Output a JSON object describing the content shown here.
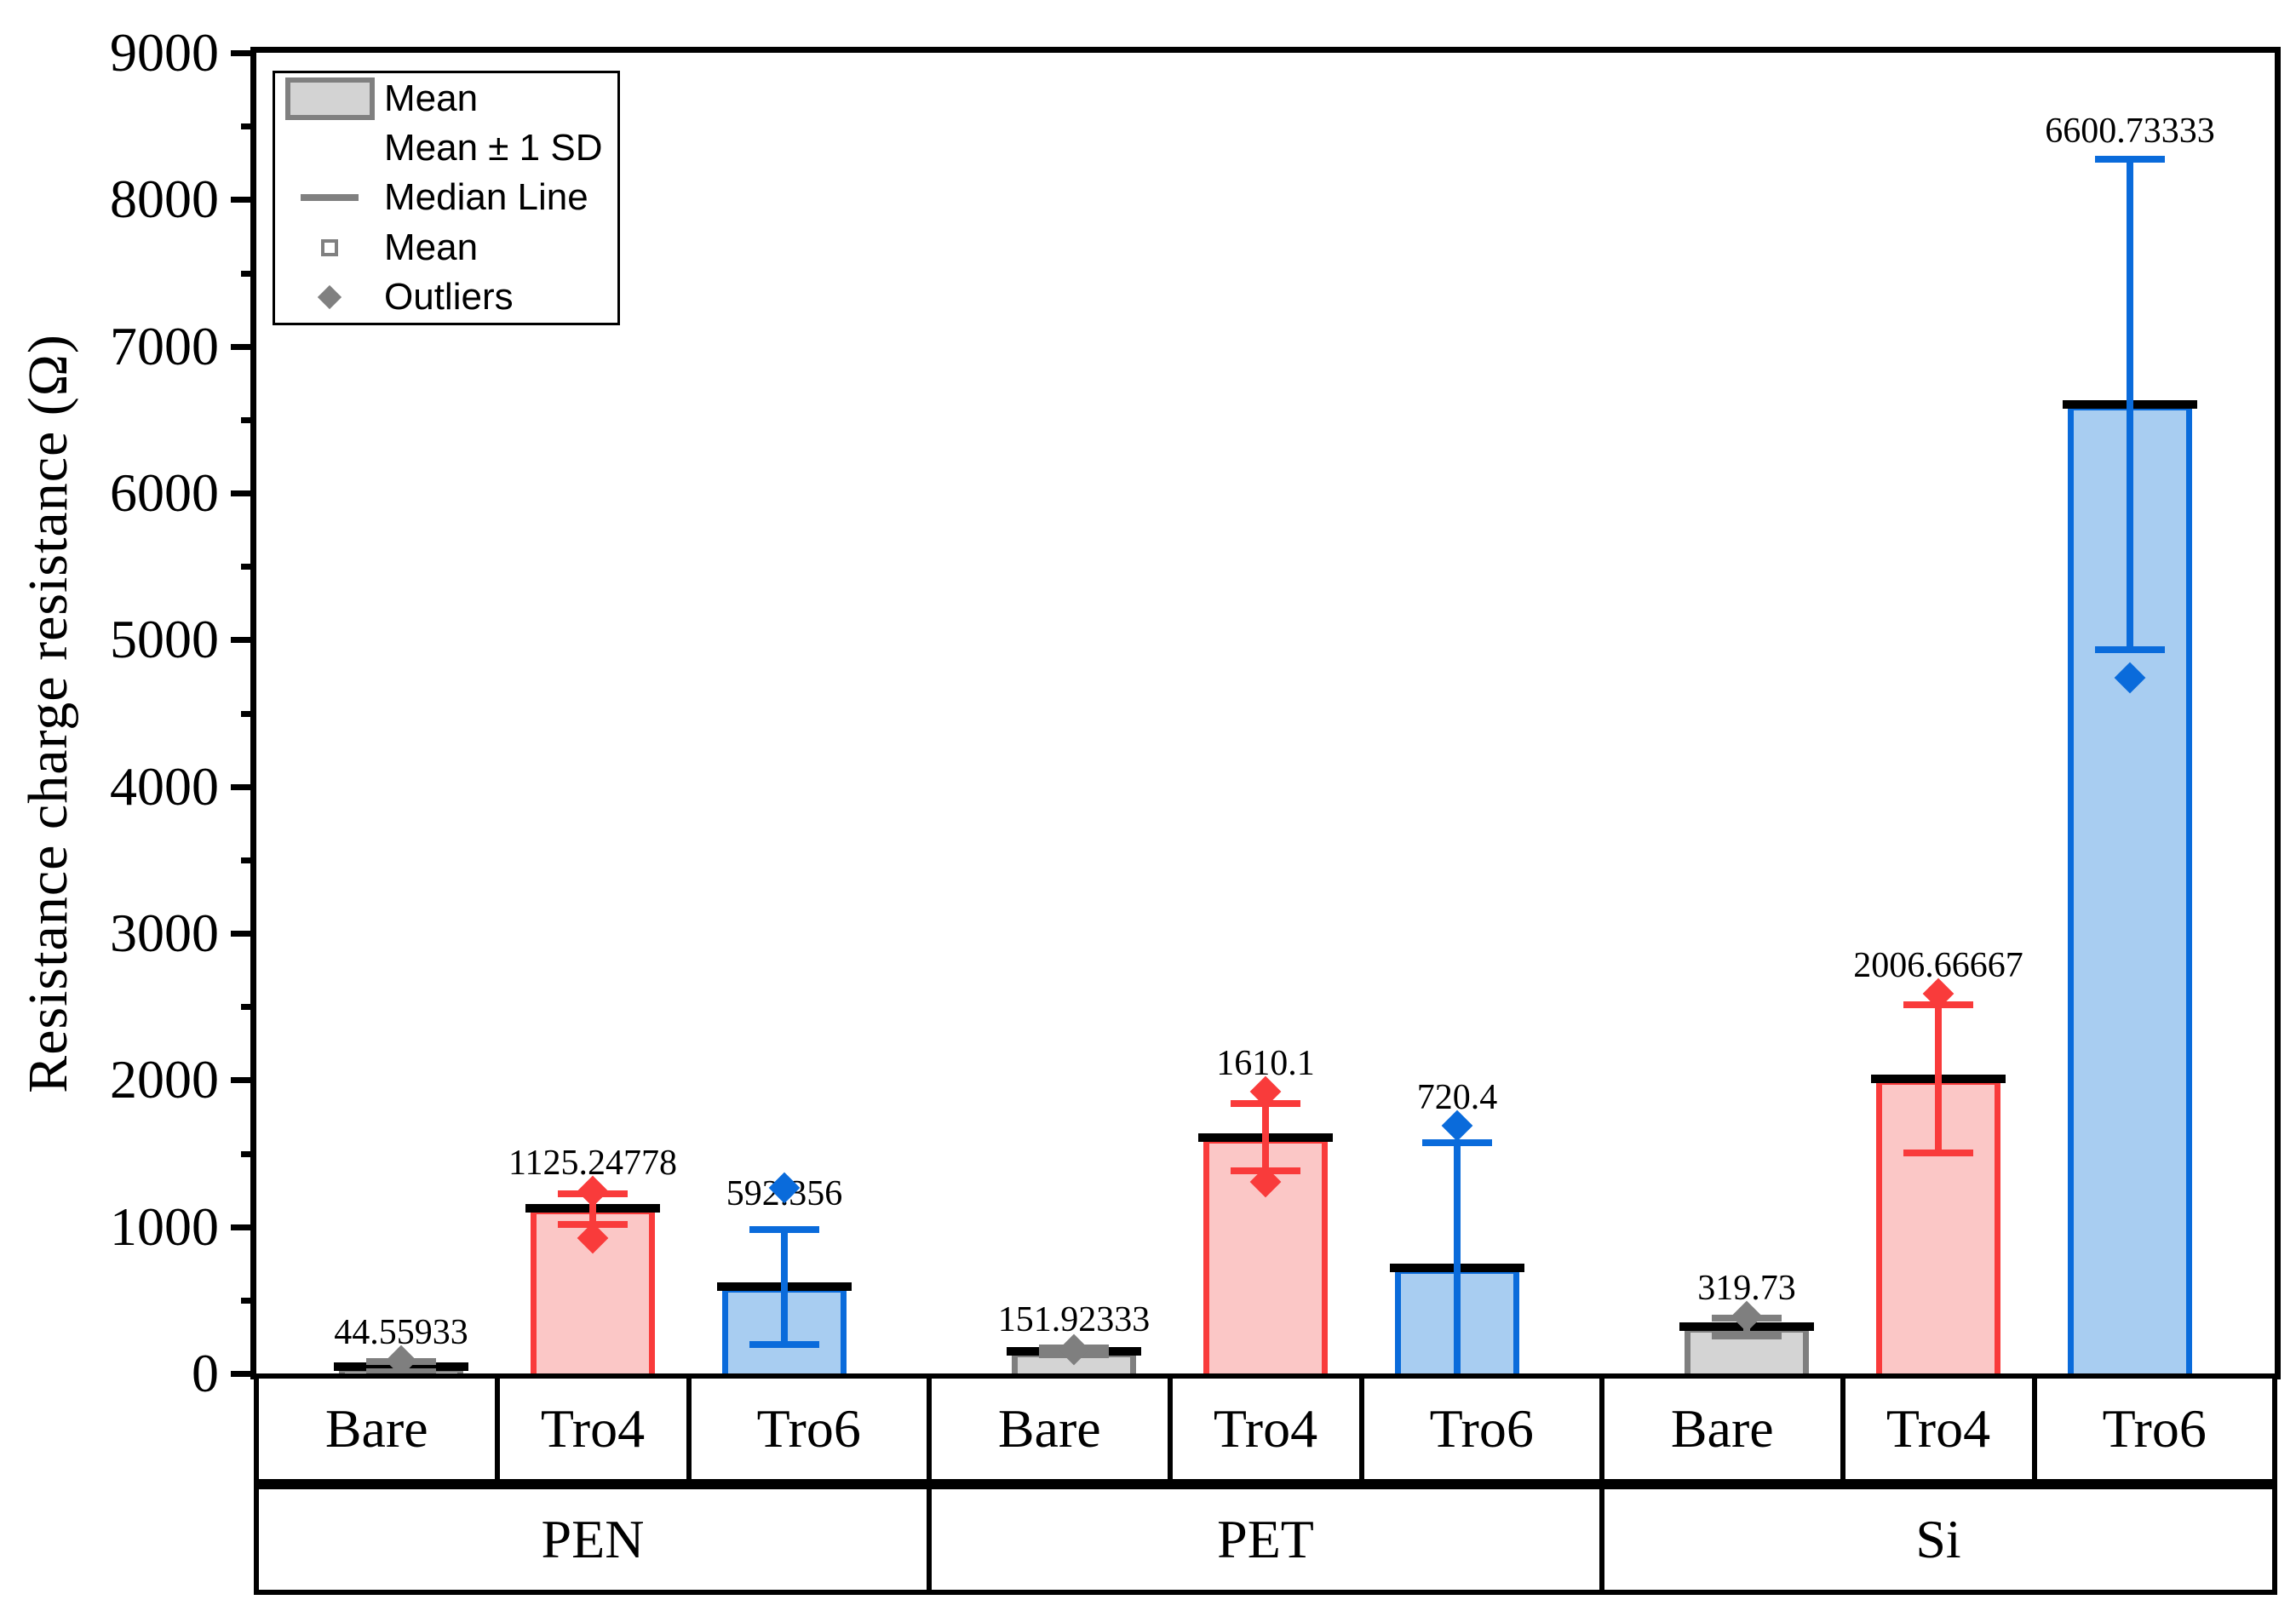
{
  "figure": {
    "background": "#FFFFFF"
  },
  "axis": {
    "ylabel": "Resistance charge resistance (Ω)",
    "ymin": 0,
    "ymax": 9000,
    "major_tick_step": 1000,
    "minor_tick_step": 500,
    "tick_labels": [
      "0",
      "1000",
      "2000",
      "3000",
      "4000",
      "5000",
      "6000",
      "7000",
      "8000",
      "9000"
    ]
  },
  "legend": {
    "items": [
      {
        "symbol": "bar-swatch",
        "label": "Mean"
      },
      {
        "symbol": "error-bar",
        "label": "Mean ± 1 SD"
      },
      {
        "symbol": "median-line",
        "label": "Median Line"
      },
      {
        "symbol": "open-square",
        "label": "Mean"
      },
      {
        "symbol": "diamond",
        "label": "Outliers"
      }
    ]
  },
  "colors": {
    "axis": "#000000",
    "median_line": "#000000",
    "legend_symbol": "#808080",
    "series": {
      "gray": {
        "fill": "#D4D4D4",
        "stroke": "#7F7F7F"
      },
      "red": {
        "fill": "#FBC7C6",
        "stroke": "#F93B3B"
      },
      "blue": {
        "fill": "#A8CDF1",
        "stroke": "#0A6BDB"
      }
    }
  },
  "chart_data": {
    "type": "bar",
    "title": "",
    "xlabel": "",
    "ylabel": "Resistance charge resistance (Ω)",
    "ylim": [
      0,
      9000
    ],
    "grid": false,
    "legend_position": "top-left",
    "groups": [
      {
        "label": "PEN",
        "bars": [
          {
            "category": "Bare",
            "series": "gray",
            "mean": 44.55933,
            "value_label": "44.55933",
            "sd_cap_top": 80,
            "sd_cap_bottom": 10,
            "outliers": [
              88
            ]
          },
          {
            "category": "Tro4",
            "series": "red",
            "mean": 1125.24778,
            "value_label": "1125.24778",
            "sd_cap_top": 1227,
            "sd_cap_bottom": 1013,
            "outliers": [
              1244,
              920
            ]
          },
          {
            "category": "Tro6",
            "series": "blue",
            "mean": 592.356,
            "value_label": "592.356",
            "sd_cap_top": 979,
            "sd_cap_bottom": 198,
            "outliers": [
              1267
            ],
            "label_dy": 40
          }
        ]
      },
      {
        "label": "PET",
        "bars": [
          {
            "category": "Bare",
            "series": "gray",
            "mean": 151.92333,
            "value_label": "151.92333",
            "sd_cap_top": 175,
            "sd_cap_bottom": 128,
            "outliers": [
              162
            ]
          },
          {
            "category": "Tro4",
            "series": "red",
            "mean": 1610.1,
            "value_label": "1610.1",
            "sd_cap_top": 1841,
            "sd_cap_bottom": 1379,
            "outliers": [
              1921,
              1308
            ]
          },
          {
            "category": "Tro6",
            "series": "blue",
            "mean": 720.4,
            "value_label": "720.4",
            "sd_cap_top": 1574,
            "sd_cap_bottom": null,
            "outliers": [
              1690
            ]
          }
        ]
      },
      {
        "label": "Si",
        "bars": [
          {
            "category": "Bare",
            "series": "gray",
            "mean": 319.73,
            "value_label": "319.73",
            "sd_cap_top": 376,
            "sd_cap_bottom": 255,
            "outliers": [
              388
            ]
          },
          {
            "category": "Tro4",
            "series": "red",
            "mean": 2006.66667,
            "value_label": "2006.66667",
            "sd_cap_top": 2512,
            "sd_cap_bottom": 1505,
            "outliers": [
              2587
            ]
          },
          {
            "category": "Tro6",
            "series": "blue",
            "mean": 6600.73333,
            "value_label": "6600.73333",
            "sd_cap_top": 8272,
            "sd_cap_bottom": 4932,
            "outliers": [
              4740
            ]
          }
        ]
      }
    ]
  }
}
